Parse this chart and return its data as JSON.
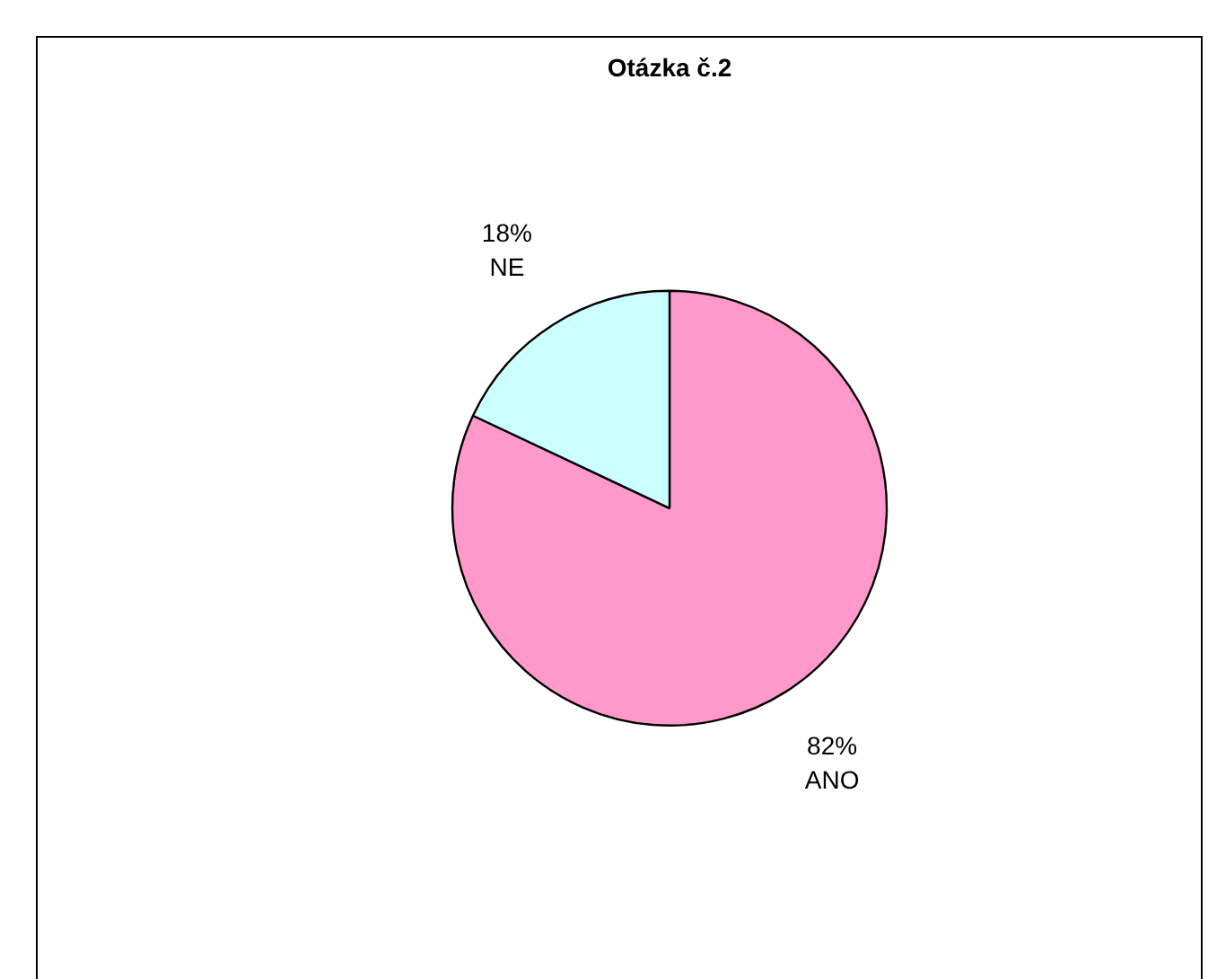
{
  "chart_data": {
    "type": "pie",
    "title": "Otázka č.2",
    "categories": [
      "ANO",
      "NE"
    ],
    "values": [
      82,
      18
    ],
    "value_labels": [
      "82%",
      "18%"
    ],
    "colors": [
      "#ff99cc",
      "#ccffff"
    ],
    "legend": false
  }
}
